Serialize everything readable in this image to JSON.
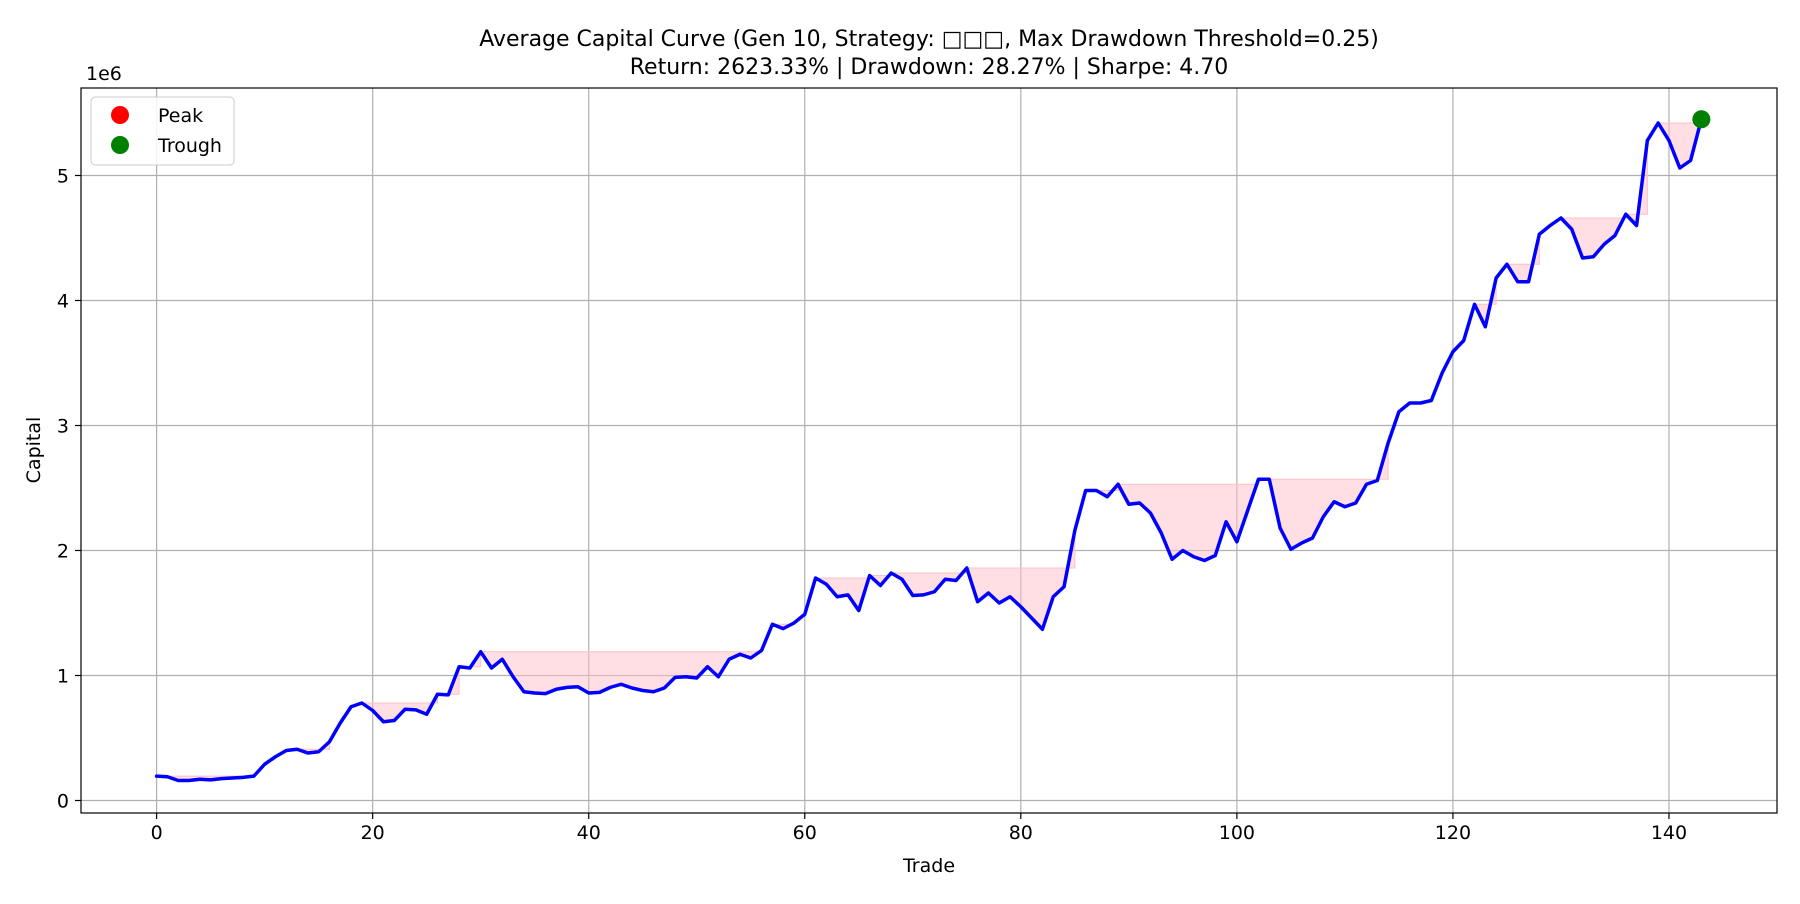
{
  "chart_data": {
    "type": "line",
    "title": "Average Capital Curve (Gen 10, Strategy: □□□, Max Drawdown Threshold=0.25)",
    "subtitle": "Return: 2623.33% | Drawdown: 28.27% | Sharpe: 4.70",
    "xlabel": "Trade",
    "ylabel": "Capital",
    "y_scale_note": "1e6",
    "xlim": [
      -7,
      150
    ],
    "ylim": [
      -100000,
      5700000
    ],
    "x_ticks": [
      0,
      20,
      40,
      60,
      80,
      100,
      120,
      140
    ],
    "x_tick_labels": [
      "0",
      "20",
      "40",
      "60",
      "80",
      "100",
      "120",
      "140"
    ],
    "y_ticks": [
      0,
      1000000,
      2000000,
      3000000,
      4000000,
      5000000
    ],
    "y_tick_labels": [
      "0",
      "1",
      "2",
      "3",
      "4",
      "5"
    ],
    "grid": true,
    "legend_position": "top-left",
    "legend": [
      {
        "label": "Peak",
        "color": "#ff0000"
      },
      {
        "label": "Trough",
        "color": "#008000"
      }
    ],
    "line_color": "#0000ff",
    "drawdown_fill_color": "#ffc0c8",
    "series": [
      {
        "values": [
          195000,
          190000,
          160000,
          160000,
          170000,
          165000,
          175000,
          180000,
          185000,
          195000,
          290000,
          350000,
          400000,
          410000,
          380000,
          390000,
          470000,
          620000,
          750000,
          780000,
          720000,
          630000,
          640000,
          730000,
          725000,
          690000,
          850000,
          845000,
          1070000,
          1060000,
          1190000,
          1060000,
          1130000,
          990000,
          870000,
          860000,
          855000,
          890000,
          905000,
          910000,
          860000,
          865000,
          905000,
          930000,
          900000,
          880000,
          870000,
          900000,
          985000,
          990000,
          980000,
          1070000,
          990000,
          1130000,
          1170000,
          1140000,
          1200000,
          1410000,
          1375000,
          1420000,
          1490000,
          1780000,
          1730000,
          1630000,
          1645000,
          1520000,
          1800000,
          1720000,
          1820000,
          1770000,
          1640000,
          1645000,
          1670000,
          1770000,
          1760000,
          1860000,
          1590000,
          1660000,
          1580000,
          1630000,
          1550000,
          1460000,
          1370000,
          1630000,
          1710000,
          2160000,
          2480000,
          2480000,
          2430000,
          2530000,
          2370000,
          2380000,
          2300000,
          2140000,
          1930000,
          2000000,
          1950000,
          1920000,
          1960000,
          2230000,
          2070000,
          2320000,
          2570000,
          2570000,
          2180000,
          2010000,
          2060000,
          2100000,
          2270000,
          2390000,
          2350000,
          2380000,
          2530000,
          2560000,
          2860000,
          3110000,
          3180000,
          3180000,
          3200000,
          3420000,
          3590000,
          3680000,
          3970000,
          3790000,
          4180000,
          4290000,
          4150000,
          4150000,
          4530000,
          4600000,
          4660000,
          4570000,
          4340000,
          4350000,
          4450000,
          4520000,
          4690000,
          4600000,
          5280000,
          5420000,
          5280000,
          5060000,
          5120000,
          5450000
        ]
      }
    ],
    "markers": [
      {
        "type": "trough",
        "x": 143,
        "y": 5450000
      }
    ]
  }
}
